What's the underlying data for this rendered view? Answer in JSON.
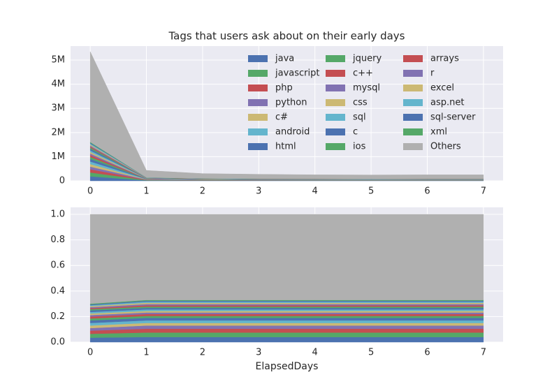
{
  "chart_data": [
    {
      "type": "stackedarea",
      "title": "Tags that users ask about on their early days",
      "x": [
        0,
        1,
        2,
        3,
        4,
        5,
        6,
        7
      ],
      "xlim": [
        -0.35,
        7.35
      ],
      "xticks": [
        0,
        1,
        2,
        3,
        4,
        5,
        6,
        7
      ],
      "ylim": [
        0,
        5580000
      ],
      "yticks": [
        0,
        {
          "value": 1000000,
          "label": "1M"
        },
        {
          "value": 2000000,
          "label": "2M"
        },
        {
          "value": 3000000,
          "label": "3M"
        },
        {
          "value": 4000000,
          "label": "4M"
        },
        {
          "value": 5000000,
          "label": "5M"
        }
      ],
      "grid": true,
      "legend": "upper right",
      "series": [
        {
          "name": "java",
          "color": "#4C72B0",
          "values": [
            187000,
            17000,
            12000,
            11000,
            10000,
            10000,
            10000,
            10000
          ]
        },
        {
          "name": "javascript",
          "color": "#55A868",
          "values": [
            160000,
            15000,
            11000,
            9000,
            9000,
            9000,
            9000,
            9000
          ]
        },
        {
          "name": "php",
          "color": "#C44E52",
          "values": [
            134000,
            13000,
            9000,
            8000,
            8000,
            7000,
            8000,
            8000
          ]
        },
        {
          "name": "python",
          "color": "#8172B2",
          "values": [
            107000,
            11000,
            8000,
            7000,
            6000,
            6000,
            6000,
            6000
          ]
        },
        {
          "name": "c#",
          "color": "#CCB974",
          "values": [
            107000,
            9000,
            6000,
            5000,
            5000,
            5000,
            5000,
            5000
          ]
        },
        {
          "name": "android",
          "color": "#64B5CD",
          "values": [
            107000,
            9000,
            6000,
            5000,
            5000,
            5000,
            5000,
            5000
          ]
        },
        {
          "name": "html",
          "color": "#4C72B0",
          "values": [
            107000,
            9000,
            6000,
            5000,
            5000,
            5000,
            5000,
            5000
          ]
        },
        {
          "name": "jquery",
          "color": "#55A868",
          "values": [
            80000,
            6000,
            5000,
            4000,
            4000,
            4000,
            4000,
            4000
          ]
        },
        {
          "name": "c++",
          "color": "#C44E52",
          "values": [
            80000,
            6000,
            5000,
            4000,
            4000,
            4000,
            4000,
            4000
          ]
        },
        {
          "name": "mysql",
          "color": "#8172B2",
          "values": [
            64000,
            5000,
            4000,
            3000,
            3000,
            3000,
            3000,
            3000
          ]
        },
        {
          "name": "css",
          "color": "#CCB974",
          "values": [
            64000,
            5000,
            4000,
            3000,
            3000,
            3000,
            3000,
            3000
          ]
        },
        {
          "name": "sql",
          "color": "#64B5CD",
          "values": [
            64000,
            5000,
            4000,
            3000,
            3000,
            3000,
            3000,
            3000
          ]
        },
        {
          "name": "c",
          "color": "#4C72B0",
          "values": [
            64000,
            5000,
            4000,
            3000,
            3000,
            3000,
            3000,
            3000
          ]
        },
        {
          "name": "ios",
          "color": "#55A868",
          "values": [
            54000,
            4000,
            3000,
            3000,
            3000,
            2000,
            3000,
            3000
          ]
        },
        {
          "name": "arrays",
          "color": "#C44E52",
          "values": [
            43000,
            4000,
            3000,
            3000,
            3000,
            2000,
            3000,
            3000
          ]
        },
        {
          "name": "r",
          "color": "#8172B2",
          "values": [
            43000,
            4000,
            3000,
            3000,
            3000,
            2000,
            3000,
            3000
          ]
        },
        {
          "name": "excel",
          "color": "#CCB974",
          "values": [
            43000,
            4000,
            3000,
            3000,
            3000,
            2000,
            3000,
            3000
          ]
        },
        {
          "name": "asp.net",
          "color": "#64B5CD",
          "values": [
            37000,
            4000,
            3000,
            2000,
            2000,
            2000,
            2000,
            2000
          ]
        },
        {
          "name": "sql-server",
          "color": "#4C72B0",
          "values": [
            32000,
            3000,
            2000,
            2000,
            2000,
            2000,
            2000,
            2000
          ]
        },
        {
          "name": "xml",
          "color": "#55A868",
          "values": [
            32000,
            3000,
            2000,
            2000,
            2000,
            2000,
            2000,
            2000
          ]
        },
        {
          "name": "Others",
          "color": "#B0B0B0",
          "values": [
            3740000,
            289000,
            197000,
            182000,
            164000,
            162000,
            164000,
            164000
          ]
        }
      ]
    },
    {
      "type": "stackedarea",
      "x_label": "ElapsedDays",
      "x": [
        0,
        1,
        2,
        3,
        4,
        5,
        6,
        7
      ],
      "xlim": [
        -0.35,
        7.35
      ],
      "xticks": [
        0,
        1,
        2,
        3,
        4,
        5,
        6,
        7
      ],
      "ylim": [
        0,
        1.055
      ],
      "yticks": [
        {
          "value": 0,
          "label": "0.0"
        },
        0.2,
        0.4,
        0.6,
        0.8,
        {
          "value": 1,
          "label": "1.0"
        }
      ],
      "grid": true,
      "series": [
        {
          "color": "#4C72B0",
          "values": [
            0.035,
            0.04,
            0.04,
            0.04,
            0.04,
            0.04,
            0.04,
            0.04
          ]
        },
        {
          "color": "#55A868",
          "values": [
            0.03,
            0.035,
            0.035,
            0.035,
            0.035,
            0.035,
            0.035,
            0.035
          ]
        },
        {
          "color": "#C44E52",
          "values": [
            0.025,
            0.03,
            0.03,
            0.03,
            0.03,
            0.03,
            0.03,
            0.03
          ]
        },
        {
          "color": "#8172B2",
          "values": [
            0.02,
            0.025,
            0.025,
            0.025,
            0.025,
            0.025,
            0.025,
            0.025
          ]
        },
        {
          "color": "#CCB974",
          "values": [
            0.02,
            0.02,
            0.02,
            0.02,
            0.02,
            0.02,
            0.02,
            0.02
          ]
        },
        {
          "color": "#64B5CD",
          "values": [
            0.02,
            0.02,
            0.02,
            0.02,
            0.02,
            0.02,
            0.02,
            0.02
          ]
        },
        {
          "color": "#4C72B0",
          "values": [
            0.02,
            0.02,
            0.02,
            0.02,
            0.02,
            0.02,
            0.02,
            0.02
          ]
        },
        {
          "color": "#55A868",
          "values": [
            0.015,
            0.015,
            0.015,
            0.015,
            0.015,
            0.015,
            0.015,
            0.015
          ]
        },
        {
          "color": "#C44E52",
          "values": [
            0.015,
            0.015,
            0.015,
            0.015,
            0.015,
            0.015,
            0.015,
            0.015
          ]
        },
        {
          "color": "#8172B2",
          "values": [
            0.012,
            0.012,
            0.012,
            0.012,
            0.012,
            0.012,
            0.012,
            0.012
          ]
        },
        {
          "color": "#CCB974",
          "values": [
            0.012,
            0.012,
            0.012,
            0.012,
            0.012,
            0.012,
            0.012,
            0.012
          ]
        },
        {
          "color": "#64B5CD",
          "values": [
            0.012,
            0.012,
            0.012,
            0.012,
            0.012,
            0.012,
            0.012,
            0.012
          ]
        },
        {
          "color": "#4C72B0",
          "values": [
            0.012,
            0.012,
            0.012,
            0.012,
            0.012,
            0.012,
            0.012,
            0.012
          ]
        },
        {
          "color": "#55A868",
          "values": [
            0.01,
            0.01,
            0.01,
            0.01,
            0.01,
            0.01,
            0.01,
            0.01
          ]
        },
        {
          "color": "#C44E52",
          "values": [
            0.008,
            0.01,
            0.01,
            0.01,
            0.01,
            0.01,
            0.01,
            0.01
          ]
        },
        {
          "color": "#8172B2",
          "values": [
            0.008,
            0.01,
            0.01,
            0.01,
            0.01,
            0.01,
            0.01,
            0.01
          ]
        },
        {
          "color": "#CCB974",
          "values": [
            0.008,
            0.01,
            0.01,
            0.01,
            0.01,
            0.01,
            0.01,
            0.01
          ]
        },
        {
          "color": "#64B5CD",
          "values": [
            0.007,
            0.009,
            0.009,
            0.009,
            0.009,
            0.009,
            0.009,
            0.009
          ]
        },
        {
          "color": "#4C72B0",
          "values": [
            0.006,
            0.007,
            0.007,
            0.007,
            0.007,
            0.007,
            0.007,
            0.007
          ]
        },
        {
          "color": "#55A868",
          "values": [
            0.006,
            0.006,
            0.006,
            0.006,
            0.006,
            0.006,
            0.006,
            0.006
          ]
        },
        {
          "color": "#B0B0B0",
          "values": [
            0.699,
            0.67,
            0.67,
            0.67,
            0.67,
            0.67,
            0.67,
            0.67
          ]
        }
      ]
    }
  ]
}
